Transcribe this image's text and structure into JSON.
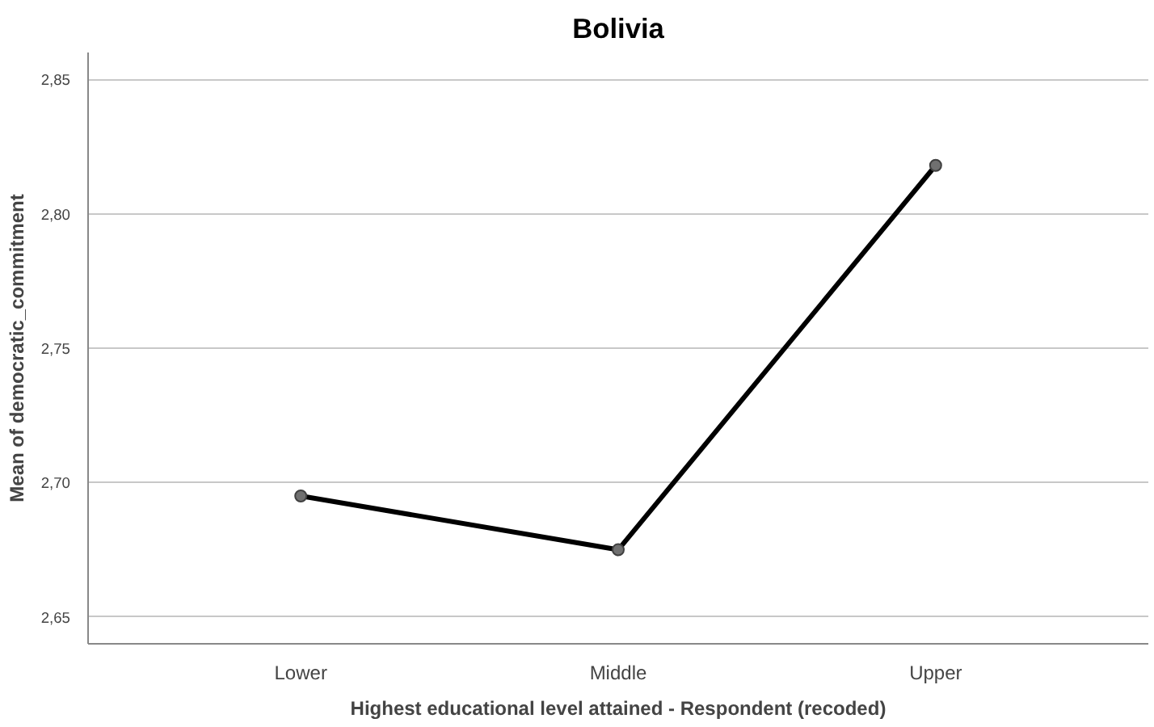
{
  "chart_data": {
    "type": "line",
    "title": "Bolivia",
    "xlabel": "Highest educational level attained - Respondent (recoded)",
    "ylabel": "Mean of democratic_commitment",
    "categories": [
      "Lower",
      "Middle",
      "Upper"
    ],
    "series": [
      {
        "color": "#000000",
        "values": [
          2.695,
          2.675,
          2.818
        ]
      }
    ],
    "ylim": [
      2.64,
      2.86
    ],
    "yticks": [
      {
        "value": 2.65,
        "label": "2,65"
      },
      {
        "value": 2.7,
        "label": "2,70"
      },
      {
        "value": 2.75,
        "label": "2,75"
      },
      {
        "value": 2.8,
        "label": "2,80"
      },
      {
        "value": 2.85,
        "label": "2,85"
      }
    ],
    "grid": "y",
    "marker": "circle",
    "line_style": "solid"
  }
}
